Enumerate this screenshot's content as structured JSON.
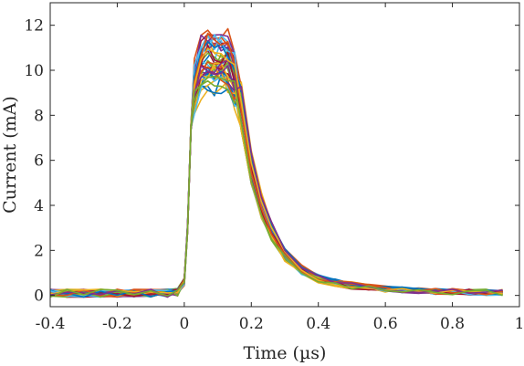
{
  "chart_data": {
    "type": "line",
    "title": "",
    "xlabel": "Time (µs)",
    "ylabel": "Current (mA)",
    "xlim": [
      -0.4,
      1.0
    ],
    "ylim": [
      -0.5,
      13.0
    ],
    "x_ticks": [
      -0.4,
      -0.2,
      0,
      0.2,
      0.4,
      0.6,
      0.8,
      1.0
    ],
    "x_tick_labels": [
      "-0.4",
      "-0.2",
      "0",
      "0.2",
      "0.4",
      "0.6",
      "0.8",
      "1"
    ],
    "y_ticks": [
      0,
      2,
      4,
      6,
      8,
      10,
      12
    ],
    "y_tick_labels": [
      "0",
      "2",
      "4",
      "6",
      "8",
      "10",
      "12"
    ],
    "grid": false,
    "legend": "none",
    "colors": [
      "#0072BD",
      "#D95319",
      "#EDB120",
      "#7E2F8E",
      "#77AC30",
      "#4DBEEE",
      "#A2142F"
    ],
    "series_description_count": 40,
    "series_template": {
      "x": [
        -0.4,
        -0.35,
        -0.3,
        -0.25,
        -0.2,
        -0.15,
        -0.1,
        -0.05,
        -0.02,
        0.0,
        0.01,
        0.02,
        0.03,
        0.05,
        0.07,
        0.09,
        0.11,
        0.13,
        0.15,
        0.17,
        0.2,
        0.23,
        0.26,
        0.3,
        0.35,
        0.4,
        0.45,
        0.5,
        0.55,
        0.6,
        0.65,
        0.7,
        0.75,
        0.8,
        0.85,
        0.9,
        0.95
      ],
      "y": [
        0.1,
        0.1,
        0.1,
        0.1,
        0.1,
        0.1,
        0.1,
        0.1,
        0.15,
        0.6,
        3.0,
        7.5,
        9.6,
        10.5,
        10.9,
        10.8,
        10.9,
        10.7,
        10.0,
        8.2,
        5.5,
        3.9,
        2.8,
        1.8,
        1.1,
        0.75,
        0.55,
        0.42,
        0.35,
        0.28,
        0.24,
        0.2,
        0.18,
        0.16,
        0.15,
        0.14,
        0.13
      ]
    }
  }
}
